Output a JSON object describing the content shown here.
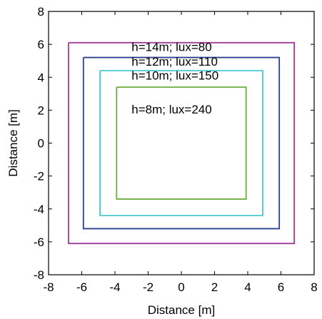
{
  "chart_data": {
    "type": "line",
    "title": "",
    "xlabel": "Distance [m]",
    "ylabel": "Distance [m]",
    "xlim": [
      -8,
      8
    ],
    "ylim": [
      -8,
      8
    ],
    "xticks": [
      -8,
      -6,
      -4,
      -2,
      0,
      2,
      4,
      6,
      8
    ],
    "yticks": [
      -8,
      -6,
      -4,
      -2,
      0,
      2,
      4,
      6,
      8
    ],
    "xtick_labels": [
      "-8",
      "-6",
      "-4",
      "-2",
      "0",
      "2",
      "4",
      "6",
      "8"
    ],
    "ytick_labels": [
      "-8",
      "-6",
      "-4",
      "-2",
      "0",
      "2",
      "4",
      "6",
      "8"
    ],
    "grid": false,
    "series": [
      {
        "color": "#a23c9b",
        "x": [
          -6.8,
          6.8,
          6.8,
          -6.8,
          -6.8
        ],
        "y": [
          6.1,
          6.1,
          -6.1,
          -6.1,
          6.1
        ]
      },
      {
        "color": "#2b3f91",
        "x": [
          -5.9,
          5.9,
          5.9,
          -5.9,
          -5.9
        ],
        "y": [
          5.2,
          5.2,
          -5.2,
          -5.2,
          5.2
        ]
      },
      {
        "color": "#49c9d1",
        "x": [
          -4.9,
          4.9,
          4.9,
          -4.9,
          -4.9
        ],
        "y": [
          4.4,
          4.4,
          -4.4,
          -4.4,
          4.4
        ]
      },
      {
        "color": "#6aae3b",
        "x": [
          -3.9,
          3.9,
          3.9,
          -3.9,
          -3.9
        ],
        "y": [
          3.4,
          3.4,
          -3.4,
          -3.4,
          3.4
        ]
      }
    ],
    "annotations": [
      {
        "text": "h=14m; lux=80",
        "x": -3.0,
        "y": 5.6
      },
      {
        "text": "h=12m; lux=110",
        "x": -3.0,
        "y": 4.7
      },
      {
        "text": "h=10m; lux=150",
        "x": -3.0,
        "y": 3.85
      },
      {
        "text": "h=8m; lux=240",
        "x": -3.0,
        "y": 1.8
      }
    ]
  }
}
